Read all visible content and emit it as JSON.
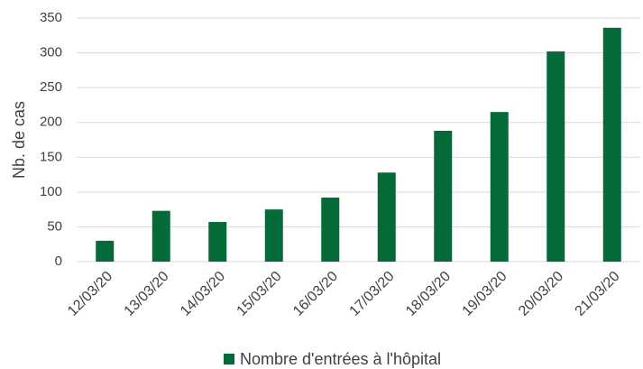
{
  "chart_data": {
    "type": "bar",
    "y_label": "Nb. de cas",
    "categories": [
      "12/03/20",
      "13/03/20",
      "14/03/20",
      "15/03/20",
      "16/03/20",
      "17/03/20",
      "18/03/20",
      "19/03/20",
      "20/03/20",
      "21/03/20"
    ],
    "series": [
      {
        "name": "Nombre d'entrées à l'hôpital",
        "color": "#046a38",
        "values": [
          30,
          73,
          57,
          75,
          92,
          128,
          188,
          215,
          302,
          336
        ]
      }
    ],
    "ylim": [
      0,
      350
    ],
    "yticks": [
      0,
      50,
      100,
      150,
      200,
      250,
      300,
      350
    ],
    "grid": true,
    "legend": "bottom"
  }
}
